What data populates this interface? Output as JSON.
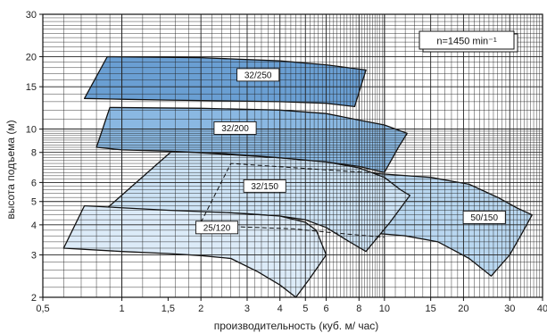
{
  "chart_data": {
    "type": "area",
    "title": "",
    "xlabel": "производительность (куб. м/ час)",
    "ylabel": "высота подъема (м)",
    "x_scale": "log",
    "y_scale": "log",
    "xlim": [
      0.5,
      40
    ],
    "ylim": [
      2,
      30
    ],
    "grid": true,
    "x_ticks": [
      {
        "value": 0.5,
        "label": "0,5"
      },
      {
        "value": 1,
        "label": "1"
      },
      {
        "value": 1.5,
        "label": "1,5"
      },
      {
        "value": 2,
        "label": "2"
      },
      {
        "value": 3,
        "label": "3"
      },
      {
        "value": 4,
        "label": "4"
      },
      {
        "value": 5,
        "label": "5"
      },
      {
        "value": 6,
        "label": "6"
      },
      {
        "value": 8,
        "label": "8"
      },
      {
        "value": 10,
        "label": "10"
      },
      {
        "value": 15,
        "label": "15"
      },
      {
        "value": 20,
        "label": "20"
      },
      {
        "value": 30,
        "label": "30"
      },
      {
        "value": 40,
        "label": "40"
      }
    ],
    "y_ticks": [
      {
        "value": 2,
        "label": "2"
      },
      {
        "value": 3,
        "label": "3"
      },
      {
        "value": 4,
        "label": "4"
      },
      {
        "value": 5,
        "label": "5"
      },
      {
        "value": 6,
        "label": "6"
      },
      {
        "value": 8,
        "label": "8"
      },
      {
        "value": 10,
        "label": "10"
      },
      {
        "value": 15,
        "label": "15"
      },
      {
        "value": 20,
        "label": "20"
      },
      {
        "value": 30,
        "label": "30"
      }
    ],
    "annotation": "n=1450 min⁻¹",
    "regions": [
      {
        "name": "50/150",
        "color": "#b9d7f0",
        "label_at": [
          24,
          4.3
        ],
        "points": [
          [
            6.1,
            6.7
          ],
          [
            10,
            6.5
          ],
          [
            15,
            6.3
          ],
          [
            21,
            5.9
          ],
          [
            27,
            5.2
          ],
          [
            32,
            4.7
          ],
          [
            36.5,
            4.4
          ],
          [
            33,
            3.6
          ],
          [
            30,
            3.0
          ],
          [
            25.5,
            2.45
          ],
          [
            21,
            2.9
          ],
          [
            16,
            3.4
          ],
          [
            12,
            3.6
          ],
          [
            9,
            3.7
          ],
          [
            6.9,
            4.1
          ],
          [
            6.5,
            5.4
          ]
        ]
      },
      {
        "name": "32/150",
        "color": "#cde3f5",
        "label_at": [
          3.5,
          5.8
        ],
        "points": [
          [
            1.55,
            8.1
          ],
          [
            2.5,
            7.85
          ],
          [
            4,
            7.6
          ],
          [
            6,
            7.3
          ],
          [
            8,
            6.9
          ],
          [
            10,
            6.3
          ],
          [
            11.5,
            5.6
          ],
          [
            12.5,
            5.3
          ],
          [
            10.5,
            4.1
          ],
          [
            8.5,
            3.1
          ],
          [
            7.2,
            3.45
          ],
          [
            6,
            3.9
          ],
          [
            5,
            4.2
          ],
          [
            4,
            4.35
          ],
          [
            3,
            4.45
          ],
          [
            2.5,
            4.5
          ],
          [
            1.3,
            4.6
          ],
          [
            0.88,
            4.7
          ]
        ]
      },
      {
        "name": "25/120",
        "color": "#dcebf8",
        "label_at": [
          2.3,
          3.9
        ],
        "points": [
          [
            0.72,
            4.8
          ],
          [
            1.5,
            4.6
          ],
          [
            2.5,
            4.5
          ],
          [
            4,
            4.35
          ],
          [
            5,
            4.1
          ],
          [
            5.5,
            3.8
          ],
          [
            6,
            3.0
          ],
          [
            5.2,
            2.4
          ],
          [
            4.6,
            2.0
          ],
          [
            4,
            2.25
          ],
          [
            3.3,
            2.55
          ],
          [
            2.6,
            2.9
          ],
          [
            2,
            2.98
          ],
          [
            1.5,
            3.04
          ],
          [
            1,
            3.1
          ],
          [
            0.6,
            3.2
          ]
        ]
      },
      {
        "name": "32/200",
        "color": "#8ab8e2",
        "label_at": [
          2.7,
          10.1
        ],
        "points": [
          [
            0.9,
            12.3
          ],
          [
            2,
            12.2
          ],
          [
            4,
            12.0
          ],
          [
            6,
            11.6
          ],
          [
            8,
            10.9
          ],
          [
            10,
            10.4
          ],
          [
            12.2,
            9.6
          ],
          [
            11.3,
            8.4
          ],
          [
            10,
            6.6
          ],
          [
            8,
            7.0
          ],
          [
            6,
            7.3
          ],
          [
            4,
            7.6
          ],
          [
            2.5,
            7.9
          ],
          [
            1.5,
            8.1
          ],
          [
            1,
            8.2
          ],
          [
            0.8,
            8.4
          ]
        ]
      },
      {
        "name": "32/250",
        "color": "#6a9fd3",
        "label_at": [
          3.3,
          16.8
        ],
        "points": [
          [
            0.88,
            20
          ],
          [
            2,
            19.8
          ],
          [
            4,
            19.2
          ],
          [
            6,
            18.5
          ],
          [
            8.5,
            17.6
          ],
          [
            8.2,
            15.5
          ],
          [
            7.7,
            12.4
          ],
          [
            6,
            12.8
          ],
          [
            4,
            13
          ],
          [
            2.5,
            13.1
          ],
          [
            1.5,
            13.2
          ],
          [
            1,
            13.3
          ],
          [
            0.72,
            13.4
          ]
        ]
      }
    ],
    "dashed_line": [
      [
        2.0,
        4.1
      ],
      [
        2.6,
        7.2
      ],
      [
        8.5,
        6.6
      ],
      [
        9.5,
        6.6
      ]
    ],
    "dashed_line2": [
      [
        2.35,
        3.95
      ],
      [
        4.5,
        3.85
      ],
      [
        6.5,
        3.7
      ],
      [
        10,
        3.55
      ]
    ]
  },
  "colors": {
    "stroke": "#111111",
    "grid": "#222222"
  }
}
